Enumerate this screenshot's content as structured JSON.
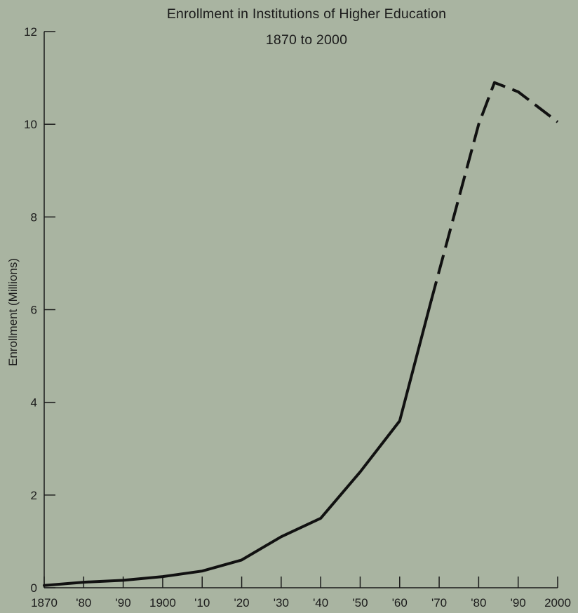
{
  "chart_data": {
    "type": "line",
    "title": "Enrollment in Institutions of Higher Education",
    "subtitle": "1870 to 2000",
    "ylabel": "Enrollment (Millions)",
    "xlabel": "",
    "xlim": [
      1870,
      2000
    ],
    "ylim": [
      0,
      12
    ],
    "grid": false,
    "x_ticks": [
      1870,
      1880,
      1890,
      1900,
      1910,
      1920,
      1930,
      1940,
      1950,
      1960,
      1970,
      1980,
      1990,
      2000
    ],
    "x_tick_labels": [
      "1870",
      "'80",
      "'90",
      "1900",
      "'10",
      "'20",
      "'30",
      "'40",
      "'50",
      "'60",
      "'70",
      "'80",
      "'90",
      "2000"
    ],
    "y_ticks": [
      0,
      2,
      4,
      6,
      8,
      10,
      12
    ],
    "y_tick_labels": [
      "0",
      "2",
      "4",
      "6",
      "8",
      "10",
      "12"
    ],
    "series": [
      {
        "style": "solid",
        "x": [
          1870,
          1880,
          1890,
          1900,
          1910,
          1920,
          1930,
          1940,
          1950,
          1960,
          1968
        ],
        "y": [
          0.05,
          0.12,
          0.16,
          0.24,
          0.36,
          0.6,
          1.1,
          1.5,
          2.5,
          3.6,
          6.2
        ]
      },
      {
        "style": "dashed",
        "x": [
          1968,
          1980,
          1984,
          1990,
          2000
        ],
        "y": [
          6.2,
          10.0,
          10.9,
          10.7,
          10.05
        ]
      }
    ]
  }
}
